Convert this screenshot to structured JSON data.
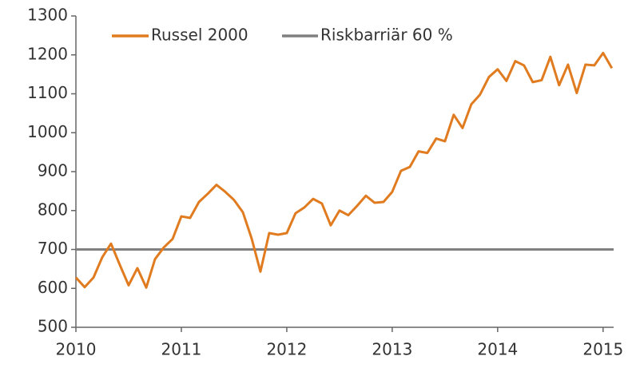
{
  "chart_data": {
    "type": "line",
    "x": [
      2010,
      2010.083,
      2010.167,
      2010.25,
      2010.333,
      2010.417,
      2010.5,
      2010.583,
      2010.667,
      2010.75,
      2010.833,
      2010.917,
      2011,
      2011.083,
      2011.167,
      2011.25,
      2011.333,
      2011.417,
      2011.5,
      2011.583,
      2011.667,
      2011.75,
      2011.833,
      2011.917,
      2012,
      2012.083,
      2012.167,
      2012.25,
      2012.333,
      2012.417,
      2012.5,
      2012.583,
      2012.667,
      2012.75,
      2012.833,
      2012.917,
      2013,
      2013.083,
      2013.167,
      2013.25,
      2013.333,
      2013.417,
      2013.5,
      2013.583,
      2013.667,
      2013.75,
      2013.833,
      2013.917,
      2014,
      2014.083,
      2014.167,
      2014.25,
      2014.333,
      2014.417,
      2014.5,
      2014.583,
      2014.667,
      2014.75,
      2014.833,
      2014.917,
      2015,
      2015.083
    ],
    "series": [
      {
        "name": "Russel 2000",
        "color": "#e07b1f",
        "values": [
          628,
          603,
          628,
          680,
          715,
          660,
          608,
          652,
          602,
          675,
          705,
          727,
          785,
          781,
          822,
          843,
          866,
          848,
          827,
          796,
          728,
          643,
          742,
          738,
          742,
          793,
          808,
          830,
          818,
          762,
          800,
          788,
          812,
          838,
          820,
          822,
          848,
          902,
          912,
          952,
          948,
          985,
          978,
          1046,
          1012,
          1073,
          1098,
          1143,
          1163,
          1133,
          1184,
          1173,
          1130,
          1135,
          1195,
          1122,
          1175,
          1102,
          1175,
          1173,
          1205,
          1166
        ]
      }
    ],
    "barrier": {
      "name": "Riskbarriär 60 %",
      "color": "#808080",
      "value": 700
    },
    "xlim": [
      2010,
      2015.1
    ],
    "xticks": [
      2010,
      2011,
      2012,
      2013,
      2014,
      2015
    ],
    "ylim": [
      500,
      1300
    ],
    "yticks": [
      500,
      600,
      700,
      800,
      900,
      1000,
      1100,
      1200,
      1300
    ],
    "grid": false
  }
}
